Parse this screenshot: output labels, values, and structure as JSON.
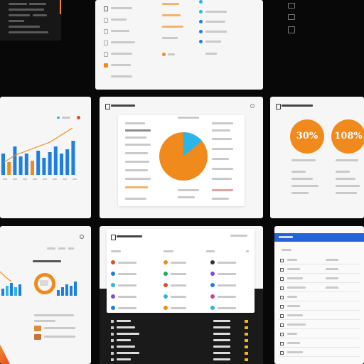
{
  "kpis": [
    "30%",
    "108%"
  ],
  "accent": {
    "orange": "#f08a1c",
    "blue": "#1e7fe0",
    "cyan": "#2bb5e8",
    "dark": "#171717",
    "sidebar_blue": "#2563d9"
  },
  "icons": [
    "close-icon",
    "settings-icon",
    "grid-icon",
    "arrow-up-icon"
  ]
}
